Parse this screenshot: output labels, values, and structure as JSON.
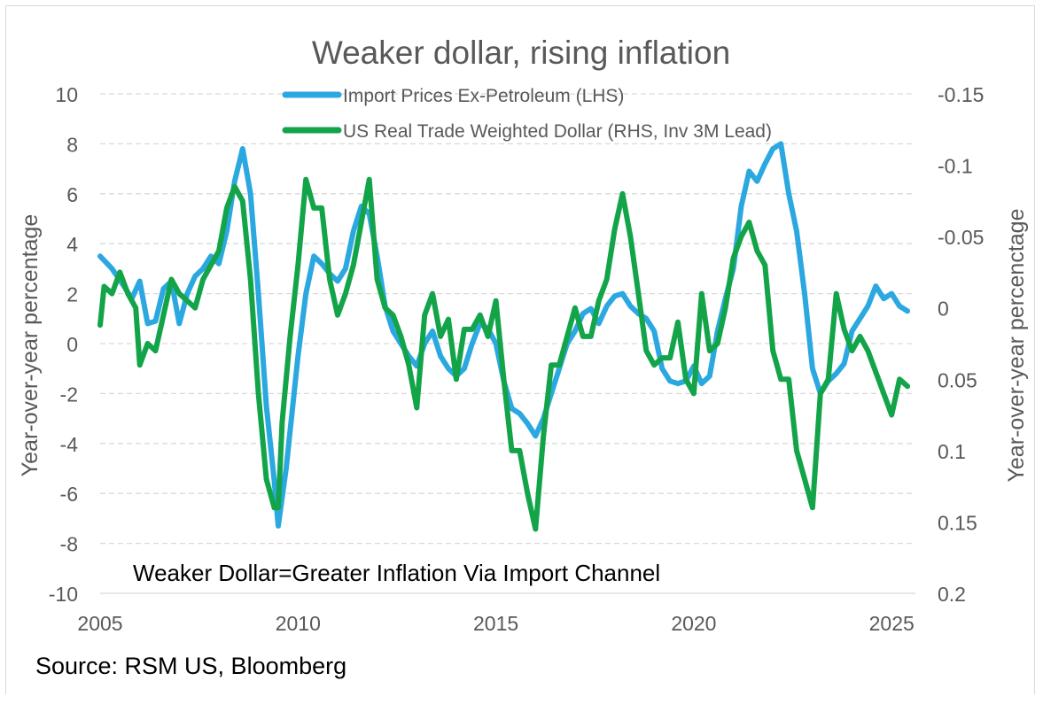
{
  "chart_data": {
    "type": "line",
    "title": "Weaker dollar, rising inflation",
    "annotation": "Weaker Dollar=Greater Inflation Via Import Channel",
    "source": "Source: RSM US, Bloomberg",
    "ylabel_left": "Year-over-year percentage",
    "ylabel_right": "Year-over-year percenctage",
    "xlim": [
      2005,
      2025.6
    ],
    "x_ticks": [
      "2005",
      "2010",
      "2015",
      "2020",
      "2025"
    ],
    "y_left_lim": [
      -10,
      10
    ],
    "y_left_ticks": [
      "10",
      "8",
      "6",
      "4",
      "2",
      "0",
      "-2",
      "-4",
      "-6",
      "-8",
      "-10"
    ],
    "y_right_lim": [
      -0.15,
      0.2
    ],
    "y_right_inverted": true,
    "y_right_ticks": [
      "-0.15",
      "-0.1",
      "-0.05",
      "0",
      "0.05",
      "0.1",
      "0.15",
      "0.2"
    ],
    "grid": true,
    "legend_position": "top-center",
    "series": [
      {
        "name": "Import Prices Ex-Petroleum (LHS)",
        "color": "#2ba8e0",
        "axis": "left",
        "x": [
          2005.0,
          2005.3,
          2005.6,
          2005.8,
          2006.0,
          2006.2,
          2006.4,
          2006.6,
          2006.8,
          2007.0,
          2007.2,
          2007.4,
          2007.6,
          2007.8,
          2008.0,
          2008.2,
          2008.4,
          2008.6,
          2008.8,
          2009.0,
          2009.2,
          2009.4,
          2009.5,
          2009.7,
          2010.0,
          2010.2,
          2010.4,
          2010.6,
          2010.8,
          2011.0,
          2011.2,
          2011.4,
          2011.6,
          2011.8,
          2012.0,
          2012.2,
          2012.4,
          2012.6,
          2012.8,
          2013.0,
          2013.2,
          2013.4,
          2013.6,
          2013.8,
          2014.0,
          2014.2,
          2014.4,
          2014.6,
          2014.8,
          2015.0,
          2015.2,
          2015.4,
          2015.6,
          2015.8,
          2016.0,
          2016.2,
          2016.4,
          2016.6,
          2016.8,
          2017.0,
          2017.2,
          2017.4,
          2017.6,
          2017.8,
          2018.0,
          2018.2,
          2018.4,
          2018.6,
          2018.8,
          2019.0,
          2019.2,
          2019.4,
          2019.6,
          2019.8,
          2020.0,
          2020.2,
          2020.4,
          2020.6,
          2020.8,
          2021.0,
          2021.2,
          2021.4,
          2021.6,
          2021.8,
          2022.0,
          2022.2,
          2022.4,
          2022.6,
          2022.8,
          2023.0,
          2023.2,
          2023.4,
          2023.6,
          2023.8,
          2024.0,
          2024.2,
          2024.4,
          2024.6,
          2024.8,
          2025.0,
          2025.2,
          2025.4
        ],
        "y": [
          3.5,
          3.0,
          2.3,
          1.8,
          2.5,
          0.8,
          0.9,
          2.2,
          2.5,
          0.8,
          2.0,
          2.7,
          3.0,
          3.5,
          3.2,
          4.5,
          6.5,
          7.8,
          6.0,
          2.0,
          -2.5,
          -5.5,
          -7.3,
          -5.0,
          -0.5,
          2.0,
          3.5,
          3.2,
          2.8,
          2.5,
          3.0,
          4.5,
          5.5,
          5.2,
          3.5,
          1.5,
          0.5,
          0.0,
          -0.5,
          -0.9,
          0.0,
          0.5,
          -0.5,
          -1.0,
          -1.3,
          -1.0,
          0.0,
          0.8,
          0.6,
          0.0,
          -1.5,
          -2.6,
          -2.8,
          -3.2,
          -3.7,
          -3.0,
          -2.0,
          -1.0,
          0.0,
          0.5,
          1.2,
          1.4,
          0.8,
          1.5,
          1.9,
          2.0,
          1.5,
          1.2,
          1.0,
          0.5,
          -1.0,
          -1.5,
          -1.6,
          -1.5,
          -0.9,
          -1.6,
          -1.3,
          0.5,
          1.8,
          3.0,
          5.5,
          6.9,
          6.5,
          7.2,
          7.8,
          8.0,
          6.0,
          4.5,
          2.0,
          -1.0,
          -2.0,
          -1.5,
          -1.2,
          -0.8,
          0.5,
          1.0,
          1.5,
          2.3,
          1.8,
          2.0,
          1.5,
          1.3
        ]
      },
      {
        "name": "US Real Trade Weighted Dollar (RHS, Inv 3M Lead)",
        "color": "#13a44a",
        "axis": "right",
        "x": [
          2005.0,
          2005.1,
          2005.3,
          2005.5,
          2005.7,
          2005.9,
          2006.0,
          2006.2,
          2006.4,
          2006.6,
          2006.8,
          2007.0,
          2007.2,
          2007.4,
          2007.6,
          2007.8,
          2008.0,
          2008.2,
          2008.4,
          2008.6,
          2008.8,
          2009.0,
          2009.2,
          2009.4,
          2009.5,
          2009.6,
          2009.8,
          2010.0,
          2010.2,
          2010.4,
          2010.6,
          2010.8,
          2011.0,
          2011.2,
          2011.4,
          2011.6,
          2011.8,
          2012.0,
          2012.2,
          2012.4,
          2012.6,
          2012.8,
          2013.0,
          2013.2,
          2013.4,
          2013.6,
          2013.8,
          2014.0,
          2014.2,
          2014.4,
          2014.6,
          2014.8,
          2015.0,
          2015.2,
          2015.4,
          2015.6,
          2015.8,
          2016.0,
          2016.2,
          2016.4,
          2016.6,
          2016.8,
          2017.0,
          2017.2,
          2017.4,
          2017.6,
          2017.8,
          2018.0,
          2018.2,
          2018.4,
          2018.6,
          2018.8,
          2019.0,
          2019.2,
          2019.4,
          2019.6,
          2019.8,
          2020.0,
          2020.2,
          2020.4,
          2020.6,
          2020.8,
          2021.0,
          2021.2,
          2021.4,
          2021.6,
          2021.8,
          2022.0,
          2022.2,
          2022.4,
          2022.6,
          2022.8,
          2023.0,
          2023.2,
          2023.4,
          2023.6,
          2023.8,
          2024.0,
          2024.2,
          2024.4,
          2024.6,
          2024.8,
          2025.0,
          2025.2,
          2025.4
        ],
        "y": [
          0.012,
          -0.015,
          -0.01,
          -0.025,
          -0.01,
          0.0,
          0.04,
          0.025,
          0.03,
          0.005,
          -0.02,
          -0.01,
          -0.005,
          0.0,
          -0.02,
          -0.03,
          -0.04,
          -0.07,
          -0.085,
          -0.075,
          -0.02,
          0.06,
          0.12,
          0.14,
          0.14,
          0.08,
          0.02,
          -0.03,
          -0.09,
          -0.07,
          -0.07,
          -0.02,
          0.005,
          -0.01,
          -0.03,
          -0.06,
          -0.09,
          -0.02,
          0.0,
          0.005,
          0.02,
          0.04,
          0.07,
          0.005,
          -0.01,
          0.02,
          0.008,
          0.05,
          0.015,
          0.015,
          0.005,
          0.02,
          -0.005,
          0.05,
          0.1,
          0.1,
          0.13,
          0.155,
          0.09,
          0.04,
          0.04,
          0.02,
          0.0,
          0.02,
          0.02,
          -0.005,
          -0.02,
          -0.055,
          -0.08,
          -0.05,
          -0.01,
          0.03,
          0.04,
          0.035,
          0.035,
          0.01,
          0.05,
          0.06,
          -0.01,
          0.03,
          0.025,
          0.0,
          -0.035,
          -0.05,
          -0.06,
          -0.04,
          -0.03,
          0.03,
          0.05,
          0.05,
          0.1,
          0.12,
          0.14,
          0.06,
          0.05,
          -0.01,
          0.015,
          0.03,
          0.02,
          0.03,
          0.045,
          0.06,
          0.075,
          0.05,
          0.055
        ]
      }
    ]
  }
}
